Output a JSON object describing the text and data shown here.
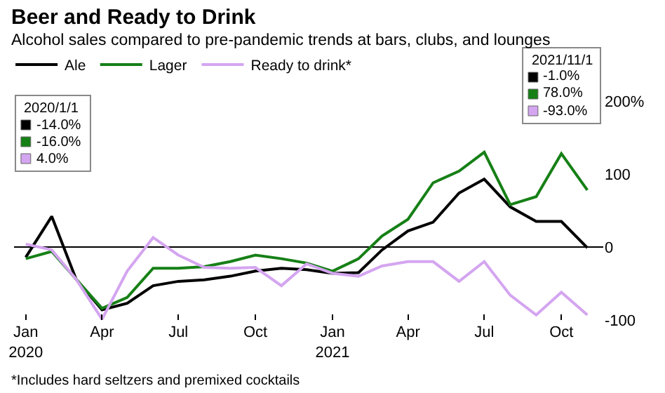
{
  "chart_data": {
    "type": "line",
    "title": "Beer and Ready to Drink",
    "subtitle": "Alcohol sales compared to pre-pandemic trends at bars, clubs, and lounges",
    "x": [
      "2020-01",
      "2020-02",
      "2020-03",
      "2020-04",
      "2020-05",
      "2020-06",
      "2020-07",
      "2020-08",
      "2020-09",
      "2020-10",
      "2020-11",
      "2020-12",
      "2021-01",
      "2021-02",
      "2021-03",
      "2021-04",
      "2021-05",
      "2021-06",
      "2021-07",
      "2021-08",
      "2021-09",
      "2021-10",
      "2021-11"
    ],
    "series": [
      {
        "name": "Ale",
        "color": "#000000",
        "values": [
          -14,
          42,
          -44,
          -86,
          -77,
          -53,
          -47,
          -45,
          -40,
          -33,
          -29,
          -31,
          -36,
          -35,
          -4,
          22,
          34,
          74,
          93,
          55,
          35,
          35,
          -1
        ]
      },
      {
        "name": "Lager",
        "color": "#168016",
        "values": [
          -16,
          -6,
          -44,
          -84,
          -69,
          -29,
          -29,
          -27,
          -20,
          -11,
          -16,
          -22,
          -33,
          -16,
          15,
          38,
          88,
          104,
          130,
          58,
          69,
          128,
          78
        ]
      },
      {
        "name": "Ready to drink*",
        "color": "#d4a5f0",
        "values": [
          4,
          -4,
          -44,
          -99,
          -33,
          13,
          -11,
          -28,
          -29,
          -28,
          -53,
          -23,
          -36,
          -40,
          -26,
          -20,
          -20,
          -47,
          -20,
          -66,
          -93,
          -62,
          -93
        ]
      }
    ],
    "xlim": [
      "2019-12-18",
      "2021-11-20"
    ],
    "xticks": [
      {
        "value": "2020-01",
        "label": "Jan\n2020"
      },
      {
        "value": "2020-04",
        "label": "Apr"
      },
      {
        "value": "2020-07",
        "label": "Jul"
      },
      {
        "value": "2020-10",
        "label": "Oct"
      },
      {
        "value": "2021-01",
        "label": "Jan\n2021"
      },
      {
        "value": "2021-04",
        "label": "Apr"
      },
      {
        "value": "2021-07",
        "label": "Jul"
      },
      {
        "value": "2021-10",
        "label": "Oct"
      }
    ],
    "ylim": [
      -100,
      200
    ],
    "yticks": [
      {
        "value": 200,
        "label": "200%"
      },
      100,
      0,
      -100
    ],
    "ref_lines": [
      {
        "axis": "y",
        "value": 0,
        "color": "#000000"
      }
    ],
    "annotations": [
      "2020/1/1",
      "-14.0%",
      "-16.0%",
      "4.0%",
      "2021/11/1",
      "-1.0%",
      "78.0%",
      "-93.0%",
      "*Includes hard seltzers and premixed cocktails"
    ],
    "legend": "top left",
    "grid": false,
    "marker": "none",
    "line_style": "solid"
  }
}
